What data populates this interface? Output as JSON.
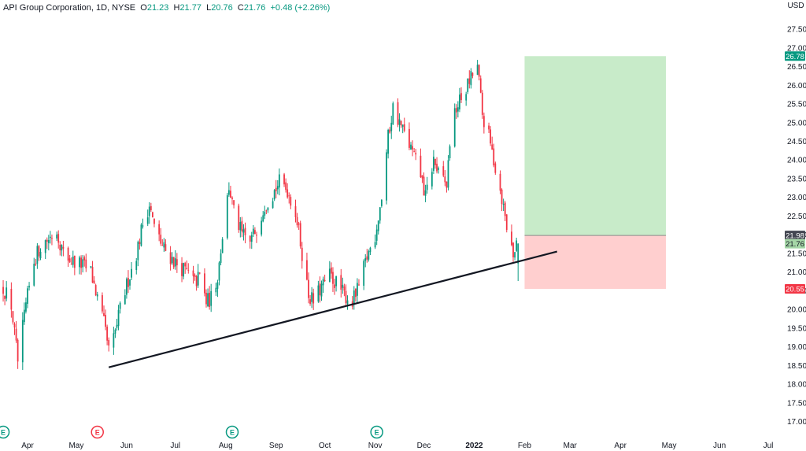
{
  "legend": {
    "symbol": "API Group Corporation, 1D, NYSE",
    "o_label": "O",
    "o_value": "21.23",
    "h_label": "H",
    "h_value": "21.77",
    "l_label": "L",
    "l_value": "20.76",
    "c_label": "C",
    "c_value": "21.76",
    "change": "+0.48 (+2.26%)"
  },
  "chart_data": {
    "type": "candlestick",
    "currency": "USD",
    "y_ticks": [
      "17.00",
      "17.50",
      "18.00",
      "18.50",
      "19.00",
      "19.50",
      "20.00",
      "20.50",
      "21.00",
      "21.50",
      "22.00",
      "22.50",
      "23.00",
      "23.50",
      "24.00",
      "24.50",
      "25.00",
      "25.50",
      "26.00",
      "26.50",
      "27.00",
      "27.50"
    ],
    "ylim": [
      16.8,
      27.85
    ],
    "x_labels": [
      {
        "text": "Apr",
        "date": "2021-04-01"
      },
      {
        "text": "May",
        "date": "2021-05-01"
      },
      {
        "text": "Jun",
        "date": "2021-06-01"
      },
      {
        "text": "Jul",
        "date": "2021-07-01"
      },
      {
        "text": "Aug",
        "date": "2021-08-01"
      },
      {
        "text": "Sep",
        "date": "2021-09-01"
      },
      {
        "text": "Oct",
        "date": "2021-10-01"
      },
      {
        "text": "Nov",
        "date": "2021-11-01"
      },
      {
        "text": "Dec",
        "date": "2021-12-01"
      },
      {
        "text": "2022",
        "date": "2022-01-01",
        "bold": true
      },
      {
        "text": "Feb",
        "date": "2022-02-01"
      },
      {
        "text": "Mar",
        "date": "2022-03-01"
      },
      {
        "text": "Apr",
        "date": "2022-04-01"
      },
      {
        "text": "May",
        "date": "2022-05-01"
      },
      {
        "text": "Jun",
        "date": "2022-06-01"
      },
      {
        "text": "Jul",
        "date": "2022-07-01"
      }
    ],
    "price_path": [
      [
        "2021-03-17",
        20.6
      ],
      [
        "2021-03-22",
        20.1
      ],
      [
        "2021-03-26",
        18.6
      ],
      [
        "2021-03-31",
        20.1
      ],
      [
        "2021-04-05",
        21.3
      ],
      [
        "2021-04-09",
        21.7
      ],
      [
        "2021-04-14",
        21.9
      ],
      [
        "2021-04-19",
        22.1
      ],
      [
        "2021-04-23",
        21.5
      ],
      [
        "2021-04-28",
        21.3
      ],
      [
        "2021-05-04",
        21.2
      ],
      [
        "2021-05-10",
        21.0
      ],
      [
        "2021-05-14",
        20.3
      ],
      [
        "2021-05-18",
        19.6
      ],
      [
        "2021-05-21",
        18.9
      ],
      [
        "2021-05-24",
        19.2
      ],
      [
        "2021-05-28",
        20.0
      ],
      [
        "2021-06-02",
        20.8
      ],
      [
        "2021-06-07",
        21.5
      ],
      [
        "2021-06-11",
        22.3
      ],
      [
        "2021-06-15",
        22.8
      ],
      [
        "2021-06-18",
        22.2
      ],
      [
        "2021-06-23",
        21.7
      ],
      [
        "2021-06-28",
        21.4
      ],
      [
        "2021-07-02",
        21.2
      ],
      [
        "2021-07-08",
        21.0
      ],
      [
        "2021-07-13",
        20.7
      ],
      [
        "2021-07-16",
        20.9
      ],
      [
        "2021-07-20",
        20.2
      ],
      [
        "2021-07-23",
        20.3
      ],
      [
        "2021-07-27",
        20.9
      ],
      [
        "2021-07-30",
        22.0
      ],
      [
        "2021-08-03",
        23.3
      ],
      [
        "2021-08-06",
        22.6
      ],
      [
        "2021-08-11",
        22.0
      ],
      [
        "2021-08-16",
        21.8
      ],
      [
        "2021-08-20",
        22.2
      ],
      [
        "2021-08-25",
        22.8
      ],
      [
        "2021-08-30",
        23.1
      ],
      [
        "2021-09-03",
        23.4
      ],
      [
        "2021-09-08",
        23.2
      ],
      [
        "2021-09-13",
        22.6
      ],
      [
        "2021-09-16",
        21.8
      ],
      [
        "2021-09-21",
        20.4
      ],
      [
        "2021-09-24",
        20.2
      ],
      [
        "2021-09-29",
        20.6
      ],
      [
        "2021-10-04",
        20.9
      ],
      [
        "2021-10-08",
        20.7
      ],
      [
        "2021-10-13",
        20.4
      ],
      [
        "2021-10-18",
        20.2
      ],
      [
        "2021-10-22",
        20.6
      ],
      [
        "2021-10-27",
        21.4
      ],
      [
        "2021-11-01",
        22.0
      ],
      [
        "2021-11-05",
        23.0
      ],
      [
        "2021-11-09",
        24.6
      ],
      [
        "2021-11-12",
        25.4
      ],
      [
        "2021-11-16",
        25.0
      ],
      [
        "2021-11-19",
        24.7
      ],
      [
        "2021-11-24",
        24.2
      ],
      [
        "2021-11-29",
        23.6
      ],
      [
        "2021-12-02",
        23.0
      ],
      [
        "2021-12-07",
        24.0
      ],
      [
        "2021-12-10",
        23.6
      ],
      [
        "2021-12-15",
        23.3
      ],
      [
        "2021-12-17",
        24.5
      ],
      [
        "2021-12-21",
        25.4
      ],
      [
        "2021-12-27",
        25.9
      ],
      [
        "2021-12-30",
        26.2
      ],
      [
        "2022-01-03",
        26.5
      ],
      [
        "2022-01-06",
        25.2
      ],
      [
        "2022-01-10",
        24.6
      ],
      [
        "2022-01-13",
        24.0
      ],
      [
        "2022-01-18",
        23.0
      ],
      [
        "2022-01-21",
        22.2
      ],
      [
        "2022-01-25",
        21.5
      ],
      [
        "2022-01-28",
        21.76
      ]
    ],
    "trendline": {
      "start": [
        "2021-05-21",
        18.45
      ],
      "end": [
        "2022-02-21",
        21.55
      ],
      "color": "#131722"
    },
    "position": {
      "start_date": "2022-02-01",
      "end_date": "2022-04-29",
      "entry": 21.98,
      "target": 26.78,
      "stop": 20.55,
      "target_color": "#c8ebc9",
      "stop_color": "#ffcfcf"
    },
    "price_tags": [
      {
        "value": 26.78,
        "label": "26.78",
        "bg": "#089981",
        "fg": "#ffffff"
      },
      {
        "value": 21.98,
        "label": "21.98",
        "bg": "#434651",
        "fg": "#ffffff"
      },
      {
        "value": 21.76,
        "label": "21.76",
        "bg": "#a5d6a7",
        "fg": "#131722"
      },
      {
        "value": 20.55,
        "label": "20.55",
        "bg": "#f23645",
        "fg": "#ffffff"
      }
    ],
    "earnings_markers": [
      {
        "date": "2021-03-17",
        "label": "E",
        "color": "#089981"
      },
      {
        "date": "2021-05-14",
        "label": "E",
        "color": "#f23645"
      },
      {
        "date": "2021-08-05",
        "label": "E",
        "color": "#089981"
      },
      {
        "date": "2021-11-02",
        "label": "E",
        "color": "#089981"
      }
    ],
    "up_color": "#089981",
    "down_color": "#f23645"
  }
}
